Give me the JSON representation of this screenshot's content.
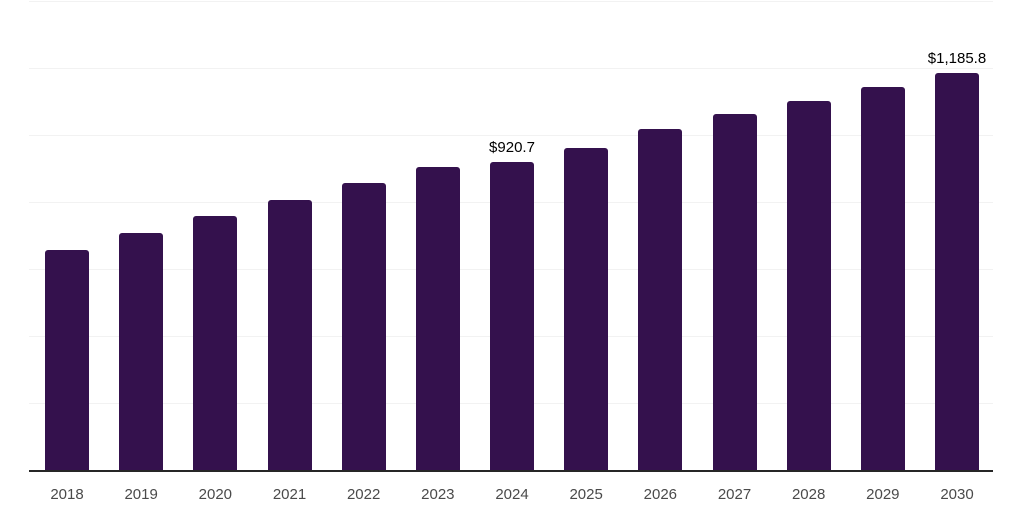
{
  "chart_data": {
    "type": "bar",
    "title": "",
    "categories": [
      "2018",
      "2019",
      "2020",
      "2021",
      "2022",
      "2023",
      "2024",
      "2025",
      "2026",
      "2027",
      "2028",
      "2029",
      "2030"
    ],
    "values": [
      656,
      707,
      757,
      807,
      858,
      906,
      920.7,
      961,
      1017,
      1062,
      1102,
      1144,
      1185.8
    ],
    "data_labels": [
      "",
      "",
      "",
      "",
      "",
      "",
      "$920.7",
      "",
      "",
      "",
      "",
      "",
      "$1,185.8"
    ],
    "xlabel": "",
    "ylabel": "",
    "ylim": [
      0,
      1400
    ],
    "ytick_step": 200,
    "grid": true,
    "legend": "none",
    "colors": {
      "bar": "#34114D",
      "gridline": "#F2F2F2",
      "axis_line": "#262626",
      "tick_label": "#4A4A4A",
      "data_label": "#000000",
      "background": "#FFFFFF"
    }
  }
}
